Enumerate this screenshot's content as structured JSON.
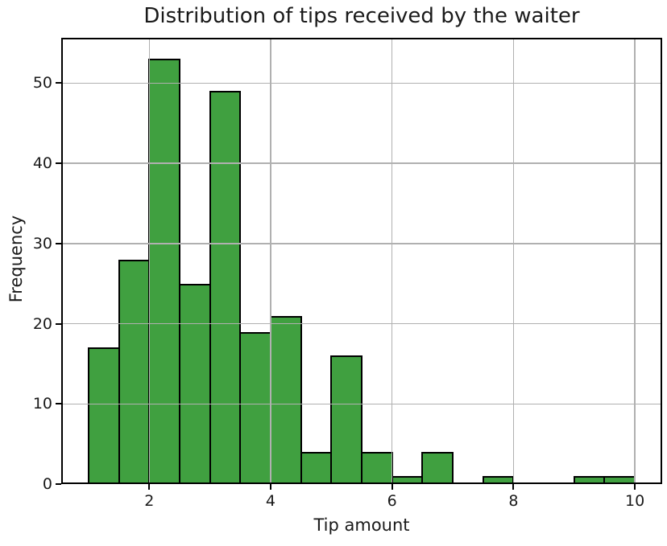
{
  "chart_data": {
    "type": "bar",
    "subtype": "histogram",
    "title": "Distribution of tips received by the waiter",
    "xlabel": "Tip amount",
    "ylabel": "Frequency",
    "bin_edges": [
      1.0,
      1.5,
      2.0,
      2.5,
      3.0,
      3.5,
      4.0,
      4.5,
      5.0,
      5.5,
      6.0,
      6.5,
      7.0,
      7.5,
      8.0,
      8.5,
      9.0,
      9.5,
      10.0
    ],
    "counts": [
      17,
      28,
      53,
      25,
      49,
      19,
      21,
      4,
      16,
      4,
      1,
      4,
      0,
      1,
      0,
      0,
      1,
      1
    ],
    "total_observations": 244,
    "xlim": [
      0.55,
      10.45
    ],
    "ylim": [
      0,
      55.65
    ],
    "xticks": [
      2,
      4,
      6,
      8,
      10
    ],
    "yticks": [
      0,
      10,
      20,
      30,
      40,
      50
    ],
    "grid": true,
    "grid_above_bars": true,
    "legend": "none",
    "colors": {
      "bar_fill": "#40a040",
      "bar_edge": "#000000",
      "grid": "#b0b0b0",
      "spine": "#000000",
      "text": "#1a1a1a",
      "background": "#ffffff"
    }
  }
}
